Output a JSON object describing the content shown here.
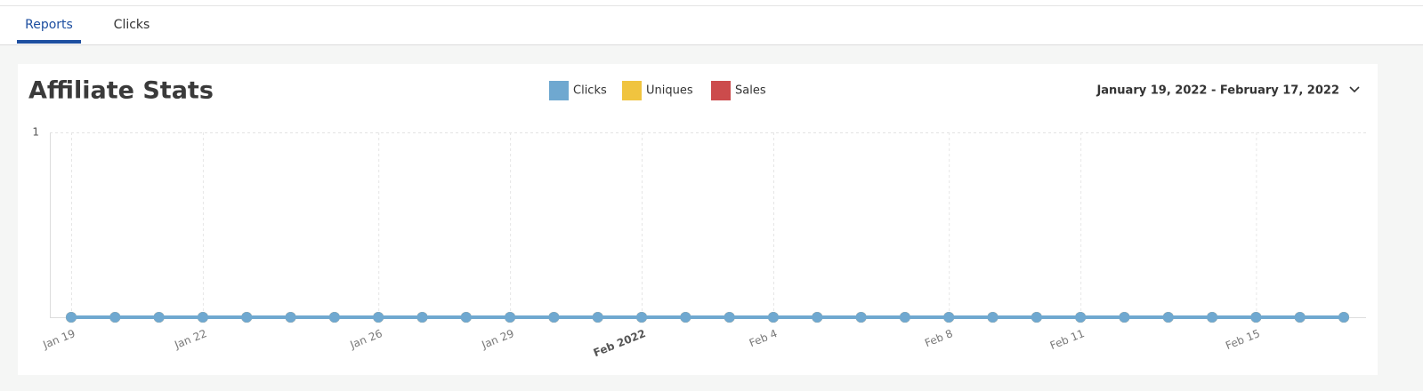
{
  "tabs": [
    "Reports",
    "Clicks"
  ],
  "date_range": "January 19, 2022 - February 17, 2022",
  "chart_data": {
    "type": "line",
    "title": "Affiliate Stats",
    "categories": [
      "Jan 19",
      null,
      null,
      "Jan 22",
      null,
      null,
      null,
      "Jan 26",
      null,
      null,
      "Jan 29",
      null,
      null,
      "Feb 2022",
      null,
      null,
      "Feb 4",
      null,
      null,
      null,
      "Feb 8",
      null,
      null,
      "Feb 11",
      null,
      null,
      null,
      "Feb 15",
      null,
      null
    ],
    "series": [
      {
        "name": "Clicks",
        "color": "#6fa8d0",
        "values": [
          0,
          0,
          0,
          0,
          0,
          0,
          0,
          0,
          0,
          0,
          0,
          0,
          0,
          0,
          0,
          0,
          0,
          0,
          0,
          0,
          0,
          0,
          0,
          0,
          0,
          0,
          0,
          0,
          0,
          0
        ]
      },
      {
        "name": "Uniques",
        "color": "#f0c43f",
        "values": [
          0,
          0,
          0,
          0,
          0,
          0,
          0,
          0,
          0,
          0,
          0,
          0,
          0,
          0,
          0,
          0,
          0,
          0,
          0,
          0,
          0,
          0,
          0,
          0,
          0,
          0,
          0,
          0,
          0,
          0
        ]
      },
      {
        "name": "Sales",
        "color": "#cc4b4c",
        "values": [
          0,
          0,
          0,
          0,
          0,
          0,
          0,
          0,
          0,
          0,
          0,
          0,
          0,
          0,
          0,
          0,
          0,
          0,
          0,
          0,
          0,
          0,
          0,
          0,
          0,
          0,
          0,
          0,
          0,
          0
        ]
      }
    ],
    "ylim": [
      0,
      1
    ],
    "yticks": [
      1
    ],
    "grid": true
  }
}
